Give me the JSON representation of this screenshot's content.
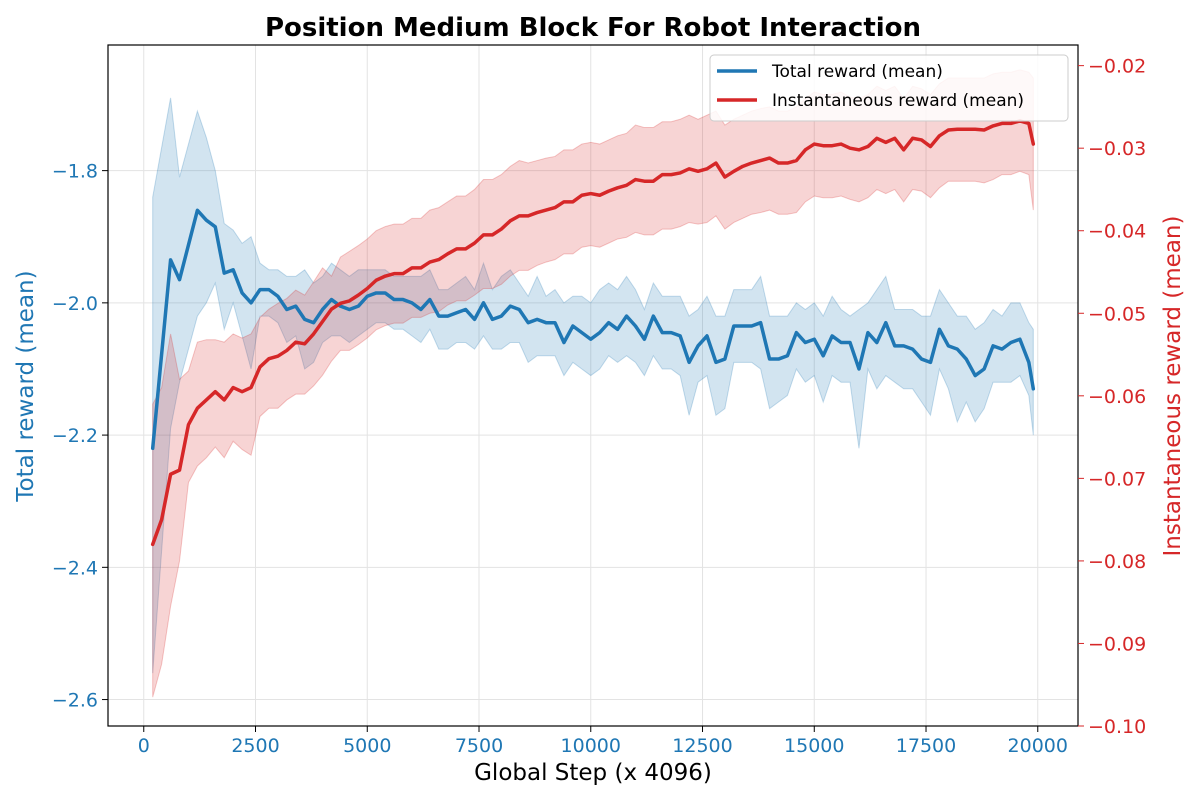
{
  "chart_data": {
    "type": "line",
    "title": "Position Medium Block For Robot Interaction",
    "xlabel": "Global Step (x 4096)",
    "ylabel_left": "Total reward (mean)",
    "ylabel_right": "Instantaneous reward (mean)",
    "xlim": [
      -800,
      20900
    ],
    "ylim_left": [
      -2.64,
      -1.61
    ],
    "ylim_right": [
      -0.1,
      -0.0175
    ],
    "x_ticks": [
      0,
      2500,
      5000,
      7500,
      10000,
      12500,
      15000,
      17500,
      20000
    ],
    "x_tick_labels": [
      "0",
      "2500",
      "5000",
      "7500",
      "10000",
      "12500",
      "15000",
      "17500",
      "20000"
    ],
    "y_left_ticks": [
      -2.6,
      -2.4,
      -2.2,
      -2.0,
      -1.8
    ],
    "y_left_tick_labels": [
      "−2.6",
      "−2.4",
      "−2.2",
      "−2.0",
      "−1.8"
    ],
    "y_right_ticks": [
      -0.1,
      -0.09,
      -0.08,
      -0.07,
      -0.06,
      -0.05,
      -0.04,
      -0.03,
      -0.02
    ],
    "y_right_tick_labels": [
      "−0.10",
      "−0.09",
      "−0.08",
      "−0.07",
      "−0.06",
      "−0.05",
      "−0.04",
      "−0.03",
      "−0.02"
    ],
    "grid": true,
    "legend_position": "top-right",
    "colors": {
      "total": "#1f77b4",
      "instant": "#d62728"
    },
    "series": [
      {
        "name": "Total reward (mean)",
        "axis": "left",
        "x": [
          200,
          600,
          800,
          1200,
          1400,
          1600,
          1800,
          2000,
          2200,
          2400,
          2600,
          2800,
          3000,
          3200,
          3400,
          3600,
          3800,
          4000,
          4200,
          4400,
          4600,
          4800,
          5000,
          5200,
          5400,
          5600,
          5800,
          6000,
          6200,
          6400,
          6600,
          6800,
          7000,
          7200,
          7400,
          7600,
          7800,
          8000,
          8200,
          8400,
          8600,
          8800,
          9000,
          9200,
          9400,
          9600,
          9800,
          10000,
          10200,
          10400,
          10600,
          10800,
          11000,
          11200,
          11400,
          11600,
          11800,
          12000,
          12200,
          12400,
          12600,
          12800,
          13000,
          13200,
          13400,
          13600,
          13800,
          14000,
          14200,
          14400,
          14600,
          14800,
          15000,
          15200,
          15400,
          15600,
          15800,
          16000,
          16200,
          16400,
          16600,
          16800,
          17000,
          17200,
          17400,
          17600,
          17800,
          18000,
          18200,
          18400,
          18600,
          18800,
          19000,
          19200,
          19400,
          19600,
          19800,
          19900
        ],
        "values": [
          -2.22,
          -1.935,
          -1.965,
          -1.86,
          -1.875,
          -1.885,
          -1.955,
          -1.95,
          -1.985,
          -2.0,
          -1.98,
          -1.98,
          -1.99,
          -2.01,
          -2.005,
          -2.025,
          -2.03,
          -2.01,
          -1.995,
          -2.005,
          -2.01,
          -2.005,
          -1.99,
          -1.985,
          -1.985,
          -1.995,
          -1.995,
          -2.0,
          -2.01,
          -1.995,
          -2.02,
          -2.02,
          -2.015,
          -2.01,
          -2.025,
          -2.0,
          -2.025,
          -2.02,
          -2.005,
          -2.01,
          -2.03,
          -2.025,
          -2.03,
          -2.03,
          -2.06,
          -2.035,
          -2.045,
          -2.055,
          -2.045,
          -2.03,
          -2.04,
          -2.02,
          -2.035,
          -2.055,
          -2.02,
          -2.045,
          -2.045,
          -2.05,
          -2.09,
          -2.065,
          -2.05,
          -2.09,
          -2.085,
          -2.035,
          -2.035,
          -2.035,
          -2.03,
          -2.085,
          -2.085,
          -2.08,
          -2.045,
          -2.06,
          -2.055,
          -2.08,
          -2.05,
          -2.06,
          -2.06,
          -2.1,
          -2.045,
          -2.06,
          -2.03,
          -2.065,
          -2.065,
          -2.07,
          -2.085,
          -2.09,
          -2.04,
          -2.065,
          -2.07,
          -2.085,
          -2.11,
          -2.1,
          -2.065,
          -2.07,
          -2.06,
          -2.055,
          -2.09,
          -2.13
        ],
        "band_upper": [
          -1.84,
          -1.69,
          -1.81,
          -1.71,
          -1.75,
          -1.8,
          -1.88,
          -1.89,
          -1.91,
          -1.9,
          -1.94,
          -1.95,
          -1.95,
          -1.96,
          -1.96,
          -1.95,
          -1.97,
          -1.96,
          -1.94,
          -1.95,
          -1.96,
          -1.95,
          -1.95,
          -1.95,
          -1.95,
          -1.96,
          -1.96,
          -1.96,
          -1.96,
          -1.95,
          -1.98,
          -1.98,
          -1.97,
          -1.96,
          -1.98,
          -1.94,
          -1.98,
          -1.96,
          -1.95,
          -1.97,
          -1.99,
          -1.96,
          -1.99,
          -1.98,
          -2.0,
          -1.99,
          -1.99,
          -2.0,
          -1.98,
          -1.97,
          -1.98,
          -1.96,
          -1.98,
          -2.01,
          -1.97,
          -1.99,
          -1.99,
          -1.99,
          -2.02,
          -2.01,
          -1.99,
          -2.02,
          -2.02,
          -1.98,
          -1.98,
          -1.98,
          -1.96,
          -2.02,
          -2.02,
          -2.02,
          -2.0,
          -2.01,
          -2.0,
          -2.02,
          -1.99,
          -2.01,
          -2.02,
          -2.01,
          -2.0,
          -1.98,
          -1.96,
          -2.01,
          -2.01,
          -2.01,
          -2.02,
          -2.02,
          -1.98,
          -2.0,
          -2.02,
          -2.02,
          -2.04,
          -2.03,
          -2.01,
          -2.02,
          -2.0,
          -2.0,
          -2.03,
          -2.04
        ],
        "band_lower": [
          -2.56,
          -2.19,
          -2.12,
          -2.02,
          -2.0,
          -1.97,
          -2.04,
          -2.0,
          -2.05,
          -2.1,
          -2.02,
          -2.02,
          -2.03,
          -2.06,
          -2.05,
          -2.1,
          -2.09,
          -2.06,
          -2.05,
          -2.05,
          -2.06,
          -2.05,
          -2.04,
          -2.03,
          -2.03,
          -2.04,
          -2.04,
          -2.05,
          -2.06,
          -2.04,
          -2.07,
          -2.07,
          -2.06,
          -2.06,
          -2.07,
          -2.05,
          -2.07,
          -2.07,
          -2.06,
          -2.06,
          -2.09,
          -2.08,
          -2.08,
          -2.08,
          -2.11,
          -2.09,
          -2.1,
          -2.11,
          -2.1,
          -2.08,
          -2.09,
          -2.08,
          -2.09,
          -2.11,
          -2.08,
          -2.1,
          -2.1,
          -2.11,
          -2.17,
          -2.12,
          -2.11,
          -2.17,
          -2.16,
          -2.09,
          -2.09,
          -2.09,
          -2.1,
          -2.16,
          -2.15,
          -2.14,
          -2.1,
          -2.12,
          -2.11,
          -2.15,
          -2.11,
          -2.12,
          -2.12,
          -2.22,
          -2.1,
          -2.13,
          -2.11,
          -2.12,
          -2.13,
          -2.13,
          -2.15,
          -2.17,
          -2.1,
          -2.13,
          -2.18,
          -2.15,
          -2.18,
          -2.16,
          -2.12,
          -2.12,
          -2.12,
          -2.11,
          -2.14,
          -2.2
        ]
      },
      {
        "name": "Instantaneous reward (mean)",
        "axis": "right",
        "x": [
          200,
          400,
          600,
          800,
          1000,
          1200,
          1400,
          1600,
          1800,
          2000,
          2200,
          2400,
          2600,
          2800,
          3000,
          3200,
          3400,
          3600,
          3800,
          4000,
          4200,
          4400,
          4600,
          4800,
          5000,
          5200,
          5400,
          5600,
          5800,
          6000,
          6200,
          6400,
          6600,
          6800,
          7000,
          7200,
          7400,
          7600,
          7800,
          8000,
          8200,
          8400,
          8600,
          8800,
          9000,
          9200,
          9400,
          9600,
          9800,
          10000,
          10200,
          10400,
          10600,
          10800,
          11000,
          11200,
          11400,
          11600,
          11800,
          12000,
          12200,
          12400,
          12600,
          12800,
          13000,
          13200,
          13400,
          13600,
          13800,
          14000,
          14200,
          14400,
          14600,
          14800,
          15000,
          15200,
          15400,
          15600,
          15800,
          16000,
          16200,
          16400,
          16600,
          16800,
          17000,
          17200,
          17400,
          17600,
          17800,
          18000,
          18200,
          18400,
          18600,
          18800,
          19000,
          19200,
          19400,
          19600,
          19800,
          19900
        ],
        "values": [
          -0.078,
          -0.075,
          -0.0695,
          -0.069,
          -0.0635,
          -0.0615,
          -0.0605,
          -0.0595,
          -0.0605,
          -0.059,
          -0.0595,
          -0.059,
          -0.0565,
          -0.0555,
          -0.0552,
          -0.0545,
          -0.0535,
          -0.0537,
          -0.0525,
          -0.051,
          -0.0495,
          -0.0488,
          -0.0485,
          -0.0478,
          -0.047,
          -0.046,
          -0.0455,
          -0.0452,
          -0.0452,
          -0.0445,
          -0.0445,
          -0.0438,
          -0.0435,
          -0.0428,
          -0.0422,
          -0.0422,
          -0.0415,
          -0.0405,
          -0.0405,
          -0.0398,
          -0.0388,
          -0.0382,
          -0.0382,
          -0.0378,
          -0.0375,
          -0.0372,
          -0.0365,
          -0.0365,
          -0.0357,
          -0.0355,
          -0.0357,
          -0.0352,
          -0.0348,
          -0.0345,
          -0.0338,
          -0.034,
          -0.034,
          -0.0332,
          -0.0332,
          -0.033,
          -0.0325,
          -0.0328,
          -0.0325,
          -0.0318,
          -0.0335,
          -0.0328,
          -0.0322,
          -0.0318,
          -0.0315,
          -0.0312,
          -0.0318,
          -0.0318,
          -0.0315,
          -0.0302,
          -0.0295,
          -0.0297,
          -0.0297,
          -0.0295,
          -0.03,
          -0.0302,
          -0.0298,
          -0.0288,
          -0.0293,
          -0.0288,
          -0.0302,
          -0.0288,
          -0.029,
          -0.0298,
          -0.0285,
          -0.0278,
          -0.0277,
          -0.0277,
          -0.0277,
          -0.0278,
          -0.0273,
          -0.027,
          -0.027,
          -0.0267,
          -0.027,
          -0.0295
        ],
        "band_upper": [
          -0.061,
          -0.059,
          -0.0525,
          -0.058,
          -0.057,
          -0.0535,
          -0.0532,
          -0.0532,
          -0.0535,
          -0.0525,
          -0.053,
          -0.0525,
          -0.0505,
          -0.0495,
          -0.0488,
          -0.0482,
          -0.0472,
          -0.0478,
          -0.0462,
          -0.0445,
          -0.0455,
          -0.0432,
          -0.0425,
          -0.0418,
          -0.041,
          -0.04,
          -0.0395,
          -0.0392,
          -0.0392,
          -0.0385,
          -0.0385,
          -0.0375,
          -0.0372,
          -0.0365,
          -0.0358,
          -0.0358,
          -0.035,
          -0.0338,
          -0.0338,
          -0.0332,
          -0.0322,
          -0.0315,
          -0.0318,
          -0.0315,
          -0.0312,
          -0.031,
          -0.0302,
          -0.0302,
          -0.0295,
          -0.0293,
          -0.0295,
          -0.029,
          -0.0285,
          -0.0282,
          -0.0272,
          -0.0275,
          -0.0275,
          -0.0268,
          -0.0268,
          -0.0265,
          -0.026,
          -0.0265,
          -0.026,
          -0.0255,
          -0.0272,
          -0.0265,
          -0.026,
          -0.0255,
          -0.0252,
          -0.025,
          -0.0255,
          -0.0255,
          -0.025,
          -0.024,
          -0.0232,
          -0.0235,
          -0.0235,
          -0.0232,
          -0.0238,
          -0.024,
          -0.0235,
          -0.0225,
          -0.023,
          -0.0225,
          -0.024,
          -0.0225,
          -0.0228,
          -0.0235,
          -0.0222,
          -0.0215,
          -0.0215,
          -0.0215,
          -0.0215,
          -0.0215,
          -0.021,
          -0.0208,
          -0.0208,
          -0.0205,
          -0.0208,
          -0.0215
        ],
        "band_lower": [
          -0.0965,
          -0.0925,
          -0.0855,
          -0.08,
          -0.0705,
          -0.0685,
          -0.0675,
          -0.0662,
          -0.0675,
          -0.0655,
          -0.0665,
          -0.0672,
          -0.0625,
          -0.0615,
          -0.0615,
          -0.0605,
          -0.0598,
          -0.0598,
          -0.0588,
          -0.0575,
          -0.0558,
          -0.0545,
          -0.0545,
          -0.0538,
          -0.053,
          -0.052,
          -0.0515,
          -0.0512,
          -0.0512,
          -0.0505,
          -0.0505,
          -0.05,
          -0.0498,
          -0.049,
          -0.0485,
          -0.0485,
          -0.0478,
          -0.047,
          -0.047,
          -0.0465,
          -0.0455,
          -0.0448,
          -0.0448,
          -0.0442,
          -0.0438,
          -0.0435,
          -0.0428,
          -0.0428,
          -0.042,
          -0.0418,
          -0.042,
          -0.0415,
          -0.041,
          -0.0408,
          -0.0402,
          -0.0405,
          -0.0405,
          -0.0398,
          -0.0398,
          -0.0395,
          -0.039,
          -0.0392,
          -0.039,
          -0.0382,
          -0.0398,
          -0.039,
          -0.0385,
          -0.038,
          -0.0378,
          -0.0375,
          -0.038,
          -0.038,
          -0.0378,
          -0.0365,
          -0.0358,
          -0.036,
          -0.036,
          -0.0358,
          -0.0362,
          -0.0365,
          -0.036,
          -0.035,
          -0.0355,
          -0.035,
          -0.0365,
          -0.035,
          -0.0352,
          -0.036,
          -0.0348,
          -0.034,
          -0.034,
          -0.034,
          -0.034,
          -0.0342,
          -0.0338,
          -0.0332,
          -0.0332,
          -0.0328,
          -0.0332,
          -0.0375
        ]
      }
    ]
  }
}
